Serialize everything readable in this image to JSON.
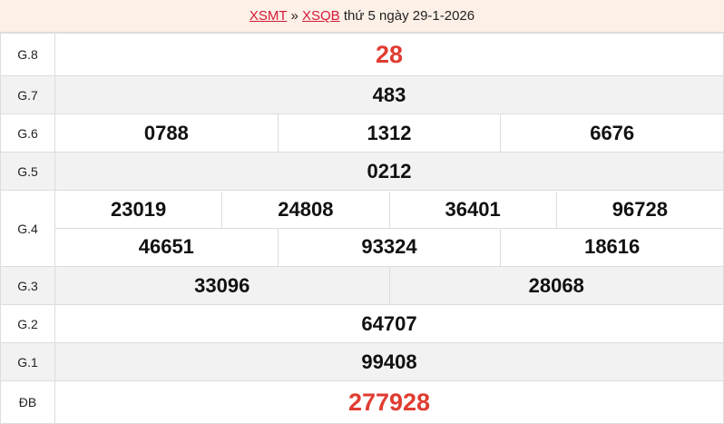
{
  "header": {
    "link1": "XSMT",
    "sep": "»",
    "link2": "XSQB",
    "text": "thứ 5 ngày 29-1-2026"
  },
  "prizes": [
    {
      "label": "G.8",
      "values": [
        "28"
      ]
    },
    {
      "label": "G.7",
      "values": [
        "483"
      ]
    },
    {
      "label": "G.6",
      "values": [
        "0788",
        "1312",
        "6676"
      ]
    },
    {
      "label": "G.5",
      "values": [
        "0212"
      ]
    },
    {
      "label": "G.4",
      "values": [
        "23019",
        "24808",
        "36401",
        "96728",
        "46651",
        "93324",
        "18616"
      ]
    },
    {
      "label": "G.3",
      "values": [
        "33096",
        "28068"
      ]
    },
    {
      "label": "G.2",
      "values": [
        "64707"
      ]
    },
    {
      "label": "G.1",
      "values": [
        "99408"
      ]
    },
    {
      "label": "ĐB",
      "values": [
        "277928"
      ]
    }
  ],
  "colors": {
    "accent": "#e03c31",
    "header_bg": "#fdf0e6",
    "link": "#d6193a"
  }
}
